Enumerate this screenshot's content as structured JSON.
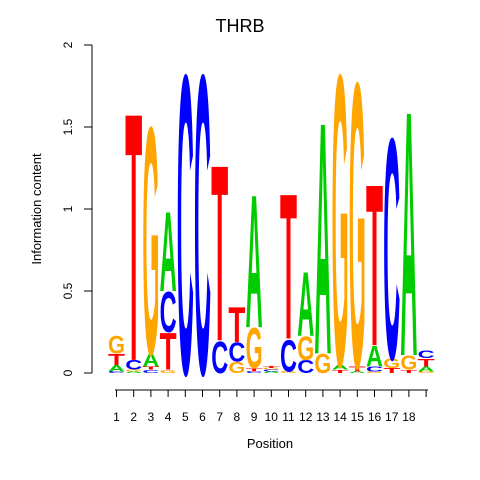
{
  "chart_data": {
    "type": "sequence-logo",
    "title": "THRB",
    "xlabel": "Position",
    "ylabel": "Information content",
    "ylim": [
      0,
      2
    ],
    "yticks": [
      "0",
      "0.5",
      "1",
      "1.5",
      "2"
    ],
    "positions": [
      "1",
      "2",
      "3",
      "4",
      "5",
      "6",
      "7",
      "8",
      "9",
      "10",
      "11",
      "12",
      "13",
      "14",
      "15",
      "16",
      "17",
      "18",
      "19"
    ],
    "xtick_labels": [
      "1",
      "2",
      "3",
      "4",
      "5",
      "6",
      "7",
      "8",
      "9",
      "10",
      "11",
      "12",
      "13",
      "14",
      "15",
      "16",
      "17",
      "18",
      ""
    ],
    "colors": {
      "A": "#00cc00",
      "C": "#0000ff",
      "G": "#ffa500",
      "T": "#ff0000"
    },
    "stacks": [
      [
        {
          "l": "C",
          "h": 0.01
        },
        {
          "l": "A",
          "h": 0.04
        },
        {
          "l": "T",
          "h": 0.07
        },
        {
          "l": "G",
          "h": 0.11
        }
      ],
      [
        {
          "l": "A",
          "h": 0.01
        },
        {
          "l": "G",
          "h": 0.01
        },
        {
          "l": "C",
          "h": 0.06
        },
        {
          "l": "T",
          "h": 1.55
        }
      ],
      [
        {
          "l": "C",
          "h": 0.02
        },
        {
          "l": "T",
          "h": 0.02
        },
        {
          "l": "A",
          "h": 0.08
        },
        {
          "l": "G",
          "h": 1.42
        }
      ],
      [
        {
          "l": "G",
          "h": 0.02
        },
        {
          "l": "T",
          "h": 0.23
        },
        {
          "l": "C",
          "h": 0.25
        },
        {
          "l": "A",
          "h": 0.5
        }
      ],
      [
        {
          "l": "C",
          "h": 1.87
        }
      ],
      [
        {
          "l": "C",
          "h": 1.87
        }
      ],
      [
        {
          "l": "C",
          "h": 0.2
        },
        {
          "l": "T",
          "h": 1.1
        }
      ],
      [
        {
          "l": "G",
          "h": 0.07
        },
        {
          "l": "C",
          "h": 0.12
        },
        {
          "l": "T",
          "h": 0.22
        }
      ],
      [
        {
          "l": "C",
          "h": 0.01
        },
        {
          "l": "T",
          "h": 0.02
        },
        {
          "l": "G",
          "h": 0.25
        },
        {
          "l": "A",
          "h": 0.83
        }
      ],
      [
        {
          "l": "A",
          "h": 0.01
        },
        {
          "l": "C",
          "h": 0.01
        },
        {
          "l": "G",
          "h": 0.01
        },
        {
          "l": "T",
          "h": 0.01
        }
      ],
      [
        {
          "l": "G",
          "h": 0.01
        },
        {
          "l": "C",
          "h": 0.2
        },
        {
          "l": "T",
          "h": 0.91
        }
      ],
      [
        {
          "l": "C",
          "h": 0.08
        },
        {
          "l": "G",
          "h": 0.15
        },
        {
          "l": "A",
          "h": 0.4
        }
      ],
      [
        {
          "l": "G",
          "h": 0.12
        },
        {
          "l": "A",
          "h": 1.45
        }
      ],
      [
        {
          "l": "T",
          "h": 0.02
        },
        {
          "l": "A",
          "h": 0.03
        },
        {
          "l": "G",
          "h": 1.82
        }
      ],
      [
        {
          "l": "A",
          "h": 0.01
        },
        {
          "l": "T",
          "h": 0.03
        },
        {
          "l": "G",
          "h": 1.78
        }
      ],
      [
        {
          "l": "G",
          "h": 0.01
        },
        {
          "l": "C",
          "h": 0.03
        },
        {
          "l": "A",
          "h": 0.13
        },
        {
          "l": "T",
          "h": 1.01
        }
      ],
      [
        {
          "l": "T",
          "h": 0.03
        },
        {
          "l": "G",
          "h": 0.06
        },
        {
          "l": "C",
          "h": 1.38
        }
      ],
      [
        {
          "l": "T",
          "h": 0.02
        },
        {
          "l": "G",
          "h": 0.09
        },
        {
          "l": "A",
          "h": 1.53
        }
      ],
      [
        {
          "l": "G",
          "h": 0.01
        },
        {
          "l": "A",
          "h": 0.03
        },
        {
          "l": "T",
          "h": 0.05
        },
        {
          "l": "C",
          "h": 0.05
        }
      ]
    ]
  }
}
